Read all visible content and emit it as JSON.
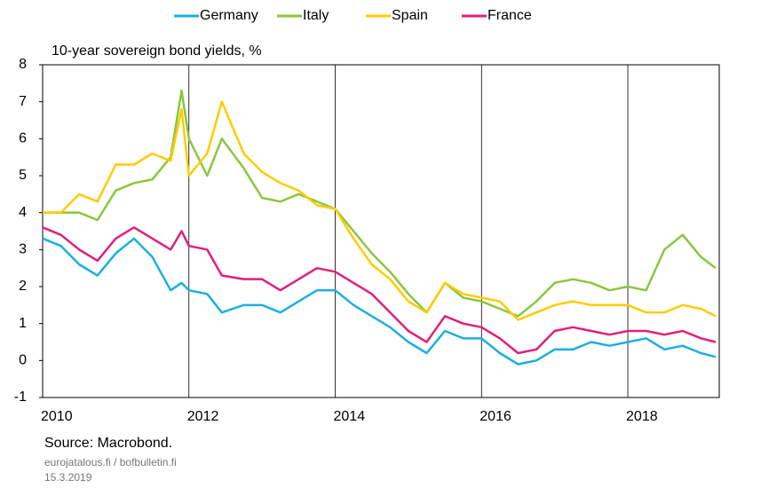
{
  "chart_data": {
    "type": "line",
    "title": "10-year sovereign bond yields, %",
    "source": "Source: Macrobond.",
    "site": "eurojatalous.fi / bofbulletin.fi",
    "date": "15.3.2019",
    "x": [
      2010,
      2010.25,
      2010.5,
      2010.75,
      2011,
      2011.25,
      2011.5,
      2011.75,
      2011.9,
      2012,
      2012.25,
      2012.45,
      2012.75,
      2013,
      2013.25,
      2013.5,
      2013.75,
      2014,
      2014.25,
      2014.5,
      2014.75,
      2015,
      2015.25,
      2015.5,
      2015.75,
      2016,
      2016.25,
      2016.5,
      2016.75,
      2017,
      2017.25,
      2017.5,
      2017.75,
      2018,
      2018.25,
      2018.5,
      2018.75,
      2019,
      2019.2
    ],
    "series": [
      {
        "name": "Germany",
        "color": "#1ab0e0",
        "values": [
          3.3,
          3.1,
          2.6,
          2.3,
          2.9,
          3.3,
          2.8,
          1.9,
          2.1,
          1.9,
          1.8,
          1.3,
          1.5,
          1.5,
          1.3,
          1.6,
          1.9,
          1.9,
          1.5,
          1.2,
          0.9,
          0.5,
          0.2,
          0.8,
          0.6,
          0.6,
          0.2,
          -0.1,
          0.0,
          0.3,
          0.3,
          0.5,
          0.4,
          0.5,
          0.6,
          0.3,
          0.4,
          0.2,
          0.1
        ]
      },
      {
        "name": "Italy",
        "color": "#8cc63f",
        "values": [
          4.0,
          4.0,
          4.0,
          3.8,
          4.6,
          4.8,
          4.9,
          5.5,
          7.3,
          6.0,
          5.0,
          6.0,
          5.2,
          4.4,
          4.3,
          4.5,
          4.3,
          4.1,
          3.5,
          2.9,
          2.4,
          1.8,
          1.3,
          2.1,
          1.7,
          1.6,
          1.4,
          1.2,
          1.6,
          2.1,
          2.2,
          2.1,
          1.9,
          2.0,
          1.9,
          3.0,
          3.4,
          2.8,
          2.5
        ]
      },
      {
        "name": "Spain",
        "color": "#ffcc00",
        "values": [
          4.0,
          4.0,
          4.5,
          4.3,
          5.3,
          5.3,
          5.6,
          5.4,
          6.8,
          5.0,
          5.6,
          7.0,
          5.6,
          5.1,
          4.8,
          4.6,
          4.2,
          4.1,
          3.3,
          2.6,
          2.2,
          1.6,
          1.3,
          2.1,
          1.8,
          1.7,
          1.6,
          1.1,
          1.3,
          1.5,
          1.6,
          1.5,
          1.5,
          1.5,
          1.3,
          1.3,
          1.5,
          1.4,
          1.2
        ]
      },
      {
        "name": "France",
        "color": "#e0207a",
        "values": [
          3.6,
          3.4,
          3.0,
          2.7,
          3.3,
          3.6,
          3.3,
          3.0,
          3.5,
          3.1,
          3.0,
          2.3,
          2.2,
          2.2,
          1.9,
          2.2,
          2.5,
          2.4,
          2.1,
          1.8,
          1.3,
          0.8,
          0.5,
          1.2,
          1.0,
          0.9,
          0.6,
          0.2,
          0.3,
          0.8,
          0.9,
          0.8,
          0.7,
          0.8,
          0.8,
          0.7,
          0.8,
          0.6,
          0.5
        ]
      }
    ],
    "xlim": [
      2010,
      2019.25
    ],
    "xticks": [
      2010,
      2012,
      2014,
      2016,
      2018
    ],
    "ylim": [
      -1,
      8
    ],
    "yticks": [
      -1,
      0,
      1,
      2,
      3,
      4,
      5,
      6,
      7,
      8
    ],
    "grid": true,
    "legend": "top"
  }
}
